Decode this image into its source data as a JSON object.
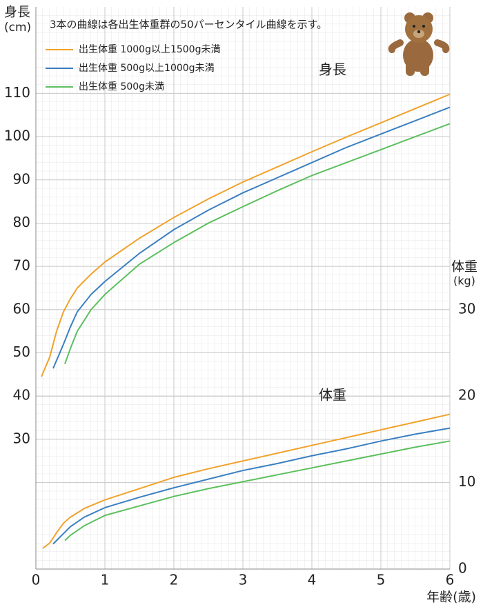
{
  "chart_data": {
    "type": "line",
    "title": "3本の曲線は各出生体重群の50パーセンタイル曲線を示す。",
    "ylabel": "身長",
    "yunit": "(cm)",
    "y2label": "体重",
    "y2unit": "(kg)",
    "xlabel": "年齢(歳)",
    "annotations": [
      "身長",
      "体重"
    ],
    "xlim": [
      0,
      6
    ],
    "xticks": [
      0,
      1,
      2,
      3,
      4,
      5,
      6
    ],
    "ylim": [
      0,
      130
    ],
    "yticks": [
      30,
      40,
      50,
      60,
      70,
      80,
      90,
      100,
      110
    ],
    "y2lim": [
      0,
      65
    ],
    "y2ticks": [
      0,
      10,
      20,
      30
    ],
    "grid": true,
    "legend": "upper left",
    "series": [
      {
        "name": "出生体重 1000g以上1500g未満",
        "color": "#f0a22a",
        "x": [
          0.08,
          0.2,
          0.3,
          0.4,
          0.5,
          0.6,
          0.8,
          1,
          1.5,
          2,
          2.5,
          3,
          3.5,
          4,
          4.5,
          5,
          5.5,
          6
        ],
        "values": [
          44.5,
          49,
          55,
          59.5,
          62.5,
          65,
          68.2,
          71,
          76.5,
          81.3,
          85.6,
          89.5,
          93,
          96.5,
          99.9,
          103.2,
          106.5,
          109.8
        ]
      },
      {
        "name": "出生体重 500g以上1000g未満",
        "color": "#3a7fc1",
        "x": [
          0.25,
          0.4,
          0.5,
          0.6,
          0.8,
          1,
          1.5,
          2,
          2.5,
          3,
          3.5,
          4,
          4.5,
          5,
          5.5,
          6
        ],
        "values": [
          46.4,
          52,
          56,
          59.5,
          63.5,
          66.5,
          73,
          78.5,
          83,
          87,
          90.5,
          94,
          97.5,
          100.6,
          103.7,
          106.8
        ]
      },
      {
        "name": "出生体重 500g未満",
        "color": "#5cbf5e",
        "x": [
          0.42,
          0.5,
          0.6,
          0.8,
          1,
          1.5,
          2,
          2.5,
          3,
          3.5,
          4,
          4.5,
          5,
          5.5,
          6
        ],
        "values": [
          47.4,
          51,
          55,
          60,
          63.5,
          70.5,
          75.5,
          80,
          83.8,
          87.5,
          91,
          94,
          97,
          100,
          103
        ]
      },
      {
        "color": "#f0a22a",
        "axis": "y2",
        "x": [
          0.1,
          0.2,
          0.3,
          0.4,
          0.5,
          0.7,
          1,
          1.5,
          2,
          2.5,
          3,
          3.5,
          4,
          4.5,
          5,
          5.5,
          6
        ],
        "values": [
          2.4,
          3.0,
          4.2,
          5.3,
          6.0,
          7.0,
          8.0,
          9.3,
          10.6,
          11.6,
          12.5,
          13.4,
          14.3,
          15.2,
          16.1,
          17.0,
          17.9
        ]
      },
      {
        "color": "#3a7fc1",
        "axis": "y2",
        "x": [
          0.25,
          0.4,
          0.5,
          0.7,
          1,
          1.5,
          2,
          2.5,
          3,
          3.5,
          4,
          4.5,
          5,
          5.5,
          6
        ],
        "values": [
          2.9,
          4.1,
          4.9,
          6.0,
          7.1,
          8.3,
          9.4,
          10.4,
          11.4,
          12.2,
          13.1,
          13.9,
          14.8,
          15.6,
          16.3
        ]
      },
      {
        "color": "#5cbf5e",
        "axis": "y2",
        "x": [
          0.42,
          0.5,
          0.7,
          1,
          1.5,
          2,
          2.5,
          3,
          3.5,
          4,
          4.5,
          5,
          5.5,
          6
        ],
        "values": [
          3.3,
          3.9,
          5.0,
          6.2,
          7.3,
          8.4,
          9.3,
          10.1,
          10.9,
          11.7,
          12.5,
          13.3,
          14.1,
          14.8
        ]
      }
    ]
  }
}
